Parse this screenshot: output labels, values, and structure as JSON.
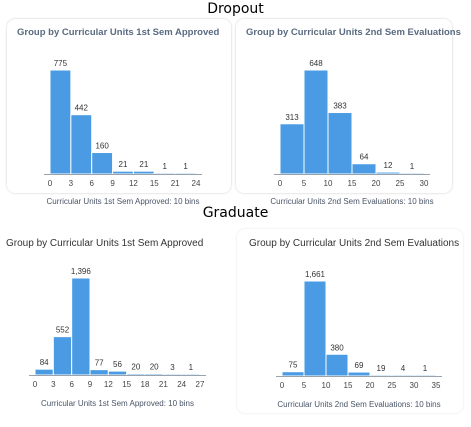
{
  "sections": {
    "dropout_label": "Dropout",
    "graduate_label": "Graduate"
  },
  "chart_data": [
    {
      "type": "bar",
      "title": "Group by Curricular Units 1st Sem Approved",
      "xlabel": "Curricular Units 1st Sem Approved: 10 bins",
      "ylabel": "",
      "bin_edges": [
        0,
        3,
        6,
        9,
        12,
        15,
        21,
        24
      ],
      "values": [
        775,
        442,
        160,
        21,
        21,
        1,
        1
      ],
      "value_labels": [
        "775",
        "442",
        "160",
        "21",
        "21",
        "1",
        "1"
      ],
      "tick_labels": [
        "0",
        "3",
        "6",
        "9",
        "12",
        "15",
        "21",
        "24"
      ]
    },
    {
      "type": "bar",
      "title": "Group by Curricular Units 2nd Sem Evaluations",
      "xlabel": "Curricular Units 2nd Sem Evaluations: 10 bins",
      "ylabel": "",
      "bin_edges": [
        0,
        5,
        10,
        15,
        20,
        25,
        30
      ],
      "values": [
        313,
        648,
        383,
        64,
        12,
        1
      ],
      "value_labels": [
        "313",
        "648",
        "383",
        "64",
        "12",
        "1"
      ],
      "tick_labels": [
        "0",
        "5",
        "10",
        "15",
        "20",
        "25",
        "30"
      ]
    },
    {
      "type": "bar",
      "title": "Group by Curricular Units 1st Sem Approved",
      "xlabel": "Curricular Units 1st Sem Approved: 10 bins",
      "ylabel": "",
      "bin_edges": [
        0,
        3,
        6,
        9,
        12,
        15,
        18,
        21,
        24,
        27
      ],
      "values": [
        84,
        552,
        1396,
        77,
        56,
        20,
        20,
        3,
        1
      ],
      "value_labels": [
        "84",
        "552",
        "1,396",
        "77",
        "56",
        "20",
        "20",
        "3",
        "1"
      ],
      "tick_labels": [
        "0",
        "3",
        "6",
        "9",
        "12",
        "15",
        "18",
        "21",
        "24",
        "27"
      ]
    },
    {
      "type": "bar",
      "title": "Group by Curricular Units 2nd Sem Evaluations",
      "xlabel": "Curricular Units 2nd Sem Evaluations: 10 bins",
      "ylabel": "",
      "bin_edges": [
        0,
        5,
        10,
        15,
        20,
        25,
        30,
        35
      ],
      "values": [
        75,
        1661,
        380,
        69,
        19,
        4,
        1
      ],
      "value_labels": [
        "75",
        "1,661",
        "380",
        "69",
        "19",
        "4",
        "1"
      ],
      "tick_labels": [
        "0",
        "5",
        "10",
        "15",
        "20",
        "25",
        "30",
        "35"
      ]
    }
  ],
  "colors": {
    "bar": "#4a9be4",
    "title": "#5a6a80"
  }
}
